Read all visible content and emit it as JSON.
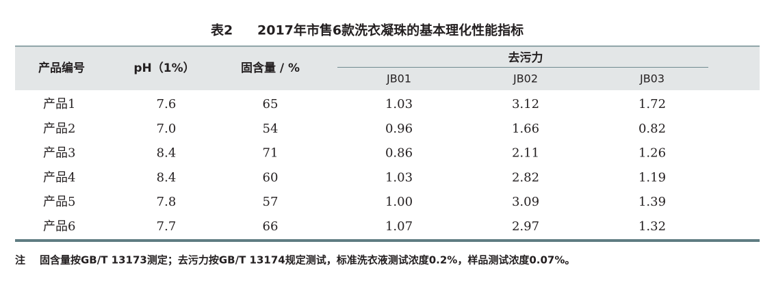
{
  "title": {
    "label": "表2",
    "text": "2017年市售6款洗衣凝珠的基本理化性能指标"
  },
  "table": {
    "header": [
      "产品编号",
      "pH（1%）",
      "固含量 / %",
      "去污力"
    ],
    "subheader": [
      "JB01",
      "JB02",
      "JB03"
    ],
    "rows": [
      [
        "产品1",
        "7.6",
        "65",
        "1.03",
        "3.12",
        "1.72"
      ],
      [
        "产品2",
        "7.0",
        "54",
        "0.96",
        "1.66",
        "0.82"
      ],
      [
        "产品3",
        "8.4",
        "71",
        "0.86",
        "2.11",
        "1.26"
      ],
      [
        "产品4",
        "8.4",
        "60",
        "1.03",
        "2.82",
        "1.19"
      ],
      [
        "产品5",
        "7.8",
        "57",
        "1.00",
        "3.09",
        "1.39"
      ],
      [
        "产品6",
        "7.7",
        "66",
        "1.07",
        "2.97",
        "1.32"
      ]
    ]
  },
  "note": {
    "label": "注",
    "text": "固含量按GB/T 13173测定；去污力按GB/T 13174规定测试，标准洗衣液测试浓度0.2%，样品测试浓度0.07%。"
  }
}
